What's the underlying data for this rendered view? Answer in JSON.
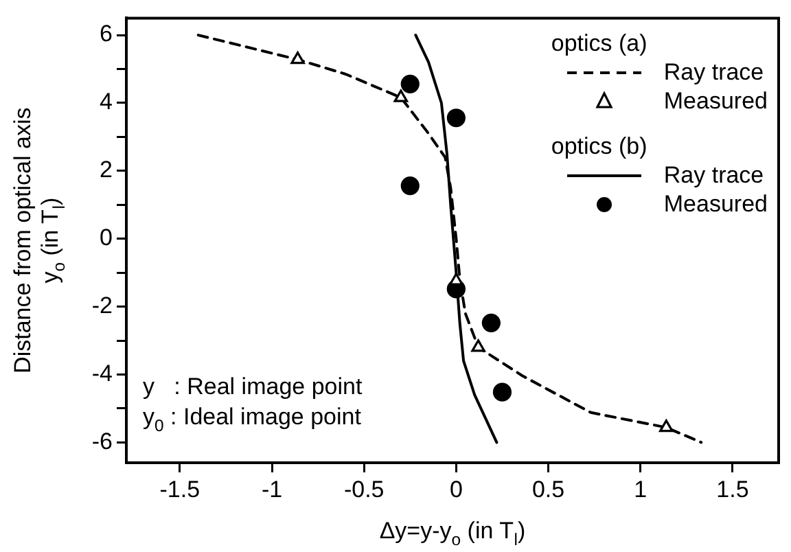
{
  "chart_data": {
    "type": "line",
    "xlabel": "Δy=y-y$_{o}$ (in T$_{l}$)",
    "ylabel": "Distance from optical axis\ny$_{o}$ (in T$_{l}$)",
    "xlim": [
      -1.79,
      1.75
    ],
    "xticks": [
      {
        "value": -1.5,
        "label": "-1.5"
      },
      {
        "value": -1,
        "label": "-1"
      },
      {
        "value": -0.5,
        "label": "-0.5"
      },
      0,
      {
        "value": 0.5,
        "label": "0.5"
      },
      1,
      {
        "value": 1.5,
        "label": "1.5"
      }
    ],
    "ylim": [
      -6.6,
      6.5
    ],
    "yticks": [
      -6,
      {
        "value": -5,
        "label": null
      },
      -4,
      {
        "value": -3,
        "label": null
      },
      -2,
      {
        "value": -1,
        "label": null
      },
      0,
      {
        "value": 1,
        "label": null
      },
      2,
      {
        "value": 3,
        "label": null
      },
      4,
      {
        "value": 5,
        "label": null
      },
      6
    ],
    "grid": false,
    "legend": "top right",
    "annotations": [
      "optics (a)",
      "optics (b)",
      "y   : Real image point",
      "y$_{0}$ : Ideal image point"
    ],
    "series": [
      {
        "name": "Ray trace",
        "line_style": "dashed",
        "marker": "none",
        "color": "#000000",
        "x": [
          -1.4,
          -1.1,
          -0.86,
          -0.6,
          -0.3,
          -0.15,
          -0.06,
          -0.03,
          0,
          0.02,
          0.05,
          0.12,
          0.36,
          0.73,
          1.14,
          1.33
        ],
        "values": [
          6.0,
          5.6,
          5.28,
          4.85,
          4.16,
          3.1,
          2.4,
          1.5,
          0,
          -1.2,
          -2.2,
          -3.2,
          -4.04,
          -5.12,
          -5.56,
          -6.0
        ]
      },
      {
        "name": "Measured",
        "type": "scatter",
        "marker": "triangle",
        "color": "#000000",
        "x": [
          -0.86,
          -0.3,
          0.0,
          0.12,
          1.14
        ],
        "values": [
          5.28,
          4.16,
          -1.24,
          -3.2,
          -5.56
        ]
      },
      {
        "name": "Ray trace",
        "line_style": "solid",
        "marker": "none",
        "color": "#000000",
        "x": [
          -0.22,
          -0.15,
          -0.08,
          -0.05,
          -0.03,
          0,
          0.02,
          0.04,
          0.1,
          0.22
        ],
        "values": [
          6.0,
          5.2,
          4.0,
          2.5,
          1.0,
          -1.0,
          -2.5,
          -3.6,
          -4.6,
          -6.0
        ]
      },
      {
        "name": "Measured",
        "type": "scatter",
        "marker": "circle",
        "color": "#000000",
        "x": [
          -0.25,
          -0.25,
          0.0,
          0.0,
          0.19,
          0.25
        ],
        "values": [
          4.56,
          1.56,
          3.56,
          -1.48,
          -2.48,
          -4.52
        ]
      }
    ]
  }
}
